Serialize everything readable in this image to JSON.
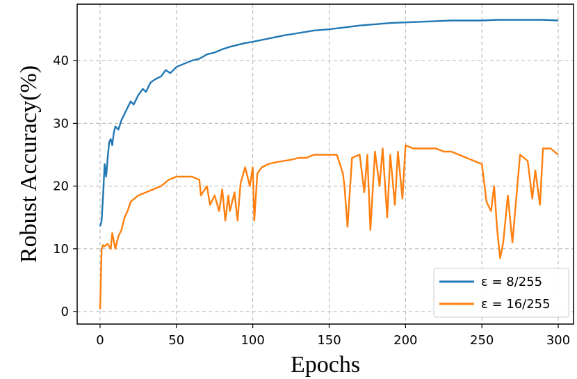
{
  "chart_data": {
    "type": "line",
    "title": "",
    "xlabel": "Epochs",
    "ylabel": "Robust Accuracy(%)",
    "xlim": [
      -15,
      310
    ],
    "ylim": [
      -2,
      49
    ],
    "xticks": [
      0,
      50,
      100,
      150,
      200,
      250,
      300
    ],
    "yticks": [
      0,
      10,
      20,
      30,
      40
    ],
    "grid": true,
    "grid_style": "dashed",
    "legend_position": "lower-right",
    "series": [
      {
        "name": "ε = 8/255",
        "color": "#1f77b4",
        "x": [
          0,
          1,
          2,
          3,
          4,
          5,
          6,
          7,
          8,
          9,
          10,
          12,
          14,
          16,
          18,
          20,
          22,
          25,
          28,
          30,
          33,
          36,
          40,
          43,
          46,
          50,
          55,
          60,
          65,
          70,
          75,
          80,
          85,
          90,
          95,
          100,
          110,
          120,
          130,
          140,
          150,
          160,
          170,
          180,
          190,
          200,
          210,
          220,
          230,
          240,
          250,
          260,
          270,
          280,
          290,
          300
        ],
        "values": [
          13.6,
          14.5,
          18.5,
          23.5,
          21.5,
          24.5,
          27.0,
          27.5,
          26.5,
          28.5,
          29.5,
          29.0,
          30.5,
          31.5,
          32.5,
          33.5,
          33.0,
          34.5,
          35.5,
          35.0,
          36.5,
          37.0,
          37.5,
          38.5,
          38.0,
          39.0,
          39.5,
          40.0,
          40.3,
          41.0,
          41.3,
          41.8,
          42.2,
          42.5,
          42.8,
          43.0,
          43.5,
          44.0,
          44.4,
          44.8,
          45.0,
          45.3,
          45.6,
          45.8,
          46.0,
          46.1,
          46.2,
          46.3,
          46.4,
          46.4,
          46.4,
          46.5,
          46.5,
          46.5,
          46.5,
          46.4
        ]
      },
      {
        "name": "ε = 16/255",
        "color": "#ff7f0e",
        "x": [
          0,
          1,
          2,
          3,
          5,
          7,
          8,
          10,
          12,
          14,
          16,
          18,
          20,
          25,
          30,
          35,
          40,
          45,
          50,
          55,
          60,
          65,
          66,
          70,
          72,
          75,
          78,
          80,
          82,
          84,
          85,
          88,
          90,
          92,
          95,
          98,
          100,
          101,
          103,
          106,
          110,
          115,
          120,
          125,
          130,
          135,
          140,
          145,
          150,
          155,
          159,
          160,
          162,
          165,
          170,
          173,
          175,
          177,
          180,
          183,
          185,
          188,
          190,
          193,
          195,
          198,
          200,
          205,
          210,
          215,
          220,
          225,
          230,
          235,
          240,
          245,
          250,
          253,
          256,
          258,
          260,
          262,
          264,
          267,
          270,
          275,
          280,
          283,
          285,
          288,
          290,
          295,
          300
        ],
        "values": [
          0.4,
          10.0,
          10.6,
          10.4,
          10.8,
          10.0,
          12.5,
          10.0,
          12.0,
          13.0,
          15.0,
          16.0,
          17.5,
          18.5,
          19.0,
          19.5,
          20.0,
          21.0,
          21.5,
          21.5,
          21.5,
          21.0,
          18.5,
          20.0,
          17.0,
          18.5,
          16.0,
          19.5,
          14.5,
          18.5,
          16.0,
          19.0,
          14.5,
          20.5,
          23.0,
          20.0,
          23.0,
          14.5,
          22.0,
          23.0,
          23.5,
          23.8,
          24.0,
          24.2,
          24.5,
          24.5,
          25.0,
          25.0,
          25.0,
          25.0,
          22.0,
          20.0,
          13.5,
          24.5,
          25.0,
          19.0,
          25.0,
          13.0,
          25.5,
          20.0,
          26.0,
          15.0,
          25.0,
          17.0,
          25.5,
          18.0,
          26.5,
          26.0,
          26.0,
          26.0,
          26.0,
          25.5,
          25.5,
          25.0,
          24.5,
          24.0,
          23.5,
          17.5,
          16.0,
          20.0,
          13.0,
          8.5,
          11.0,
          18.5,
          11.0,
          25.0,
          24.0,
          18.0,
          22.5,
          17.0,
          26.0,
          26.0,
          25.0
        ]
      }
    ]
  }
}
